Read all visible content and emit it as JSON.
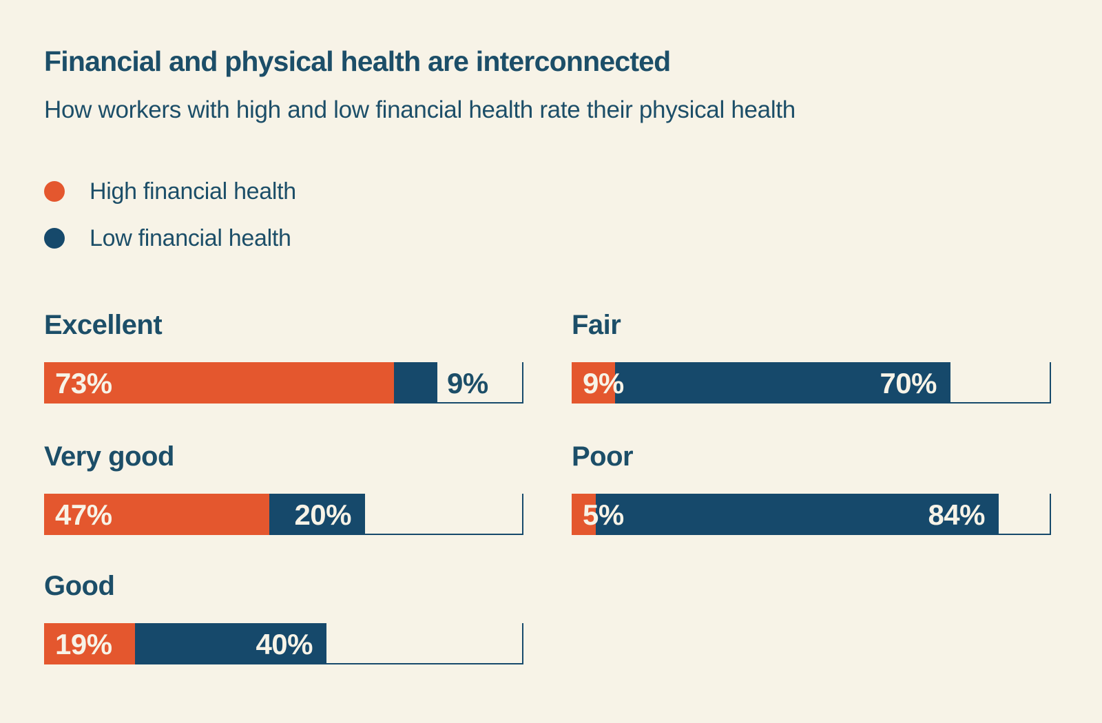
{
  "page": {
    "background_color": "#f7f3e7"
  },
  "header": {
    "title": "Financial and physical health are interconnected",
    "subtitle": "How workers with high and low financial health rate their physical health"
  },
  "legend": {
    "items": [
      {
        "key": "high",
        "label": "High financial health",
        "color": "#e4572e"
      },
      {
        "key": "low",
        "label": "Low financial health",
        "color": "#16496b"
      }
    ]
  },
  "colors": {
    "background": "#f7f3e7",
    "orange": "#e4572e",
    "navy": "#16496b",
    "navy_text": "#1c4e68",
    "bar_label_cream": "#f7f3e7"
  },
  "chart_data": {
    "type": "bar",
    "variant": "horizontal-stacked",
    "unit": "%",
    "title": "Financial and physical health are interconnected",
    "subtitle": "How workers with high and low financial health rate their physical health",
    "categories": [
      "Excellent",
      "Very good",
      "Good",
      "Fair",
      "Poor"
    ],
    "series": [
      {
        "name": "High financial health",
        "color": "#e4572e",
        "values": [
          73,
          47,
          19,
          9,
          5
        ]
      },
      {
        "name": "Low financial health",
        "color": "#16496b",
        "values": [
          9,
          20,
          40,
          70,
          84
        ]
      }
    ],
    "xlim": [
      0,
      100
    ],
    "grid": false,
    "legend_position": "top-left",
    "value_label_format": "{v}%",
    "track_end_marker": "bottom-and-right-outline",
    "columns": {
      "left": [
        "Excellent",
        "Very good",
        "Good"
      ],
      "right": [
        "Fair",
        "Poor"
      ]
    }
  }
}
